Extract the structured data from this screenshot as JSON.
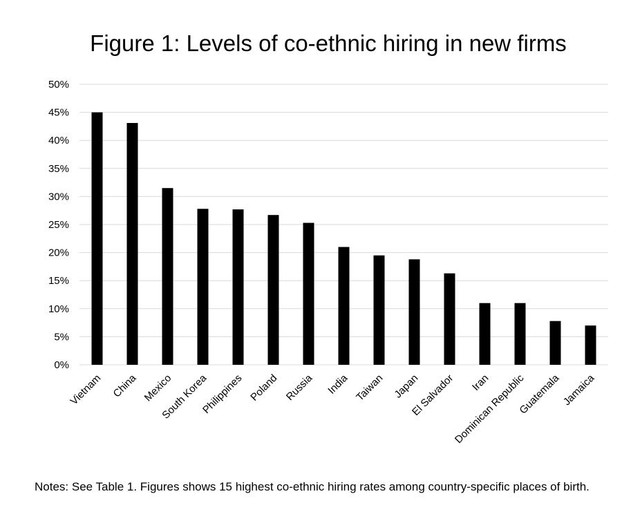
{
  "chart_data": {
    "type": "bar",
    "title": "Figure 1: Levels of co-ethnic hiring in new firms",
    "xlabel": "",
    "ylabel": "",
    "categories": [
      "Vietnam",
      "China",
      "Mexico",
      "South Korea",
      "Philippines",
      "Poland",
      "Russia",
      "India",
      "Taiwan",
      "Japan",
      "El Salvador",
      "Iran",
      "Dominican Republic",
      "Guatemala",
      "Jamaica"
    ],
    "values": [
      45.0,
      43.1,
      31.5,
      27.8,
      27.7,
      26.7,
      25.3,
      21.0,
      19.5,
      18.8,
      16.3,
      11.0,
      11.0,
      7.8,
      7.0
    ],
    "ylim": [
      0,
      50
    ],
    "yticks": [
      0,
      5,
      10,
      15,
      20,
      25,
      30,
      35,
      40,
      45,
      50
    ],
    "ytick_labels": [
      "0%",
      "5%",
      "10%",
      "15%",
      "20%",
      "25%",
      "30%",
      "35%",
      "40%",
      "45%",
      "50%"
    ],
    "grid": true,
    "legend": "none",
    "bar_color": "#000000",
    "grid_color": "#d9d9d9",
    "note": "Notes: See Table 1. Figures shows 15 highest co-ethnic hiring rates among country-specific places of birth."
  }
}
